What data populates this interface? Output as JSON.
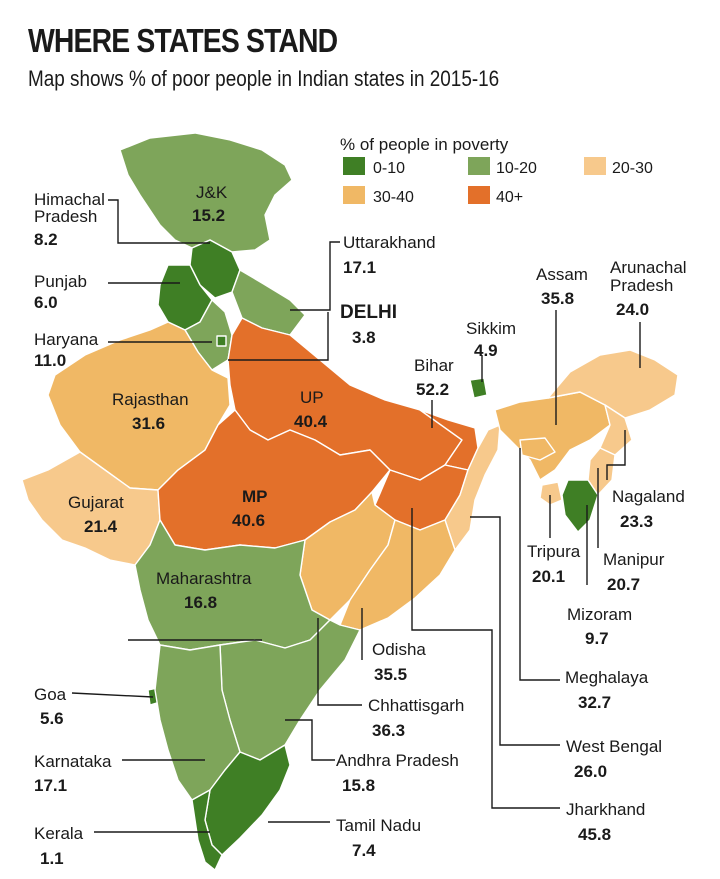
{
  "title": "WHERE STATES STAND",
  "subtitle": "Map shows % of poor people in Indian states in 2015-16",
  "legend": {
    "title": "% of people in poverty",
    "items": [
      {
        "label": "0-10",
        "color": "#3f7f25"
      },
      {
        "label": "10-20",
        "color": "#7ea55a"
      },
      {
        "label": "20-30",
        "color": "#f7c98c"
      },
      {
        "label": "30-40",
        "color": "#f0b865"
      },
      {
        "label": "40+",
        "color": "#e3702a"
      }
    ]
  },
  "states": [
    {
      "name": "J&K",
      "value": "15.2"
    },
    {
      "name": "Himachal Pradesh",
      "line1": "Himachal",
      "line2": "Pradesh",
      "value": "8.2"
    },
    {
      "name": "Punjab",
      "value": "6.0"
    },
    {
      "name": "Haryana",
      "value": "11.0"
    },
    {
      "name": "Uttarakhand",
      "value": "17.1"
    },
    {
      "name": "DELHI",
      "value": "3.8"
    },
    {
      "name": "Rajasthan",
      "value": "31.6"
    },
    {
      "name": "UP",
      "value": "40.4"
    },
    {
      "name": "Sikkim",
      "value": "4.9"
    },
    {
      "name": "Bihar",
      "value": "52.2"
    },
    {
      "name": "Assam",
      "value": "35.8"
    },
    {
      "name": "Arunachal Pradesh",
      "line1": "Arunachal",
      "line2": "Pradesh",
      "value": "24.0"
    },
    {
      "name": "Gujarat",
      "value": "21.4"
    },
    {
      "name": "MP",
      "value": "40.6"
    },
    {
      "name": "Nagaland",
      "value": "23.3"
    },
    {
      "name": "Tripura",
      "value": "20.1"
    },
    {
      "name": "Manipur",
      "value": "20.7"
    },
    {
      "name": "Maharashtra",
      "value": "16.8"
    },
    {
      "name": "Mizoram",
      "value": "9.7"
    },
    {
      "name": "Odisha",
      "value": "35.5"
    },
    {
      "name": "Meghalaya",
      "value": "32.7"
    },
    {
      "name": "Goa",
      "value": "5.6"
    },
    {
      "name": "Chhattisgarh",
      "value": "36.3"
    },
    {
      "name": "West Bengal",
      "value": "26.0"
    },
    {
      "name": "Karnataka",
      "value": "17.1"
    },
    {
      "name": "Andhra Pradesh",
      "value": "15.8"
    },
    {
      "name": "Jharkhand",
      "value": "45.8"
    },
    {
      "name": "Kerala",
      "value": "1.1"
    },
    {
      "name": "Tamil Nadu",
      "value": "7.4"
    }
  ]
}
